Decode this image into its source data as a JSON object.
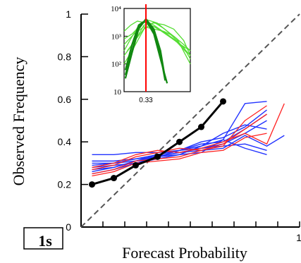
{
  "chart_data": {
    "type": "line",
    "xlabel": "Forecast Probability",
    "ylabel": "Observed Frequency",
    "xlim": [
      0,
      1
    ],
    "ylim": [
      0,
      1
    ],
    "y_ticks": [
      "0",
      "0.2",
      "0.4",
      "0.6",
      "0.8",
      "1"
    ],
    "x_tick_labels": {
      "end": "1"
    },
    "corner_label": "1s",
    "diagonal": {
      "style": "dashed",
      "color": "#555555"
    },
    "bold_series": {
      "color": "#000000",
      "x": [
        0.05,
        0.15,
        0.25,
        0.35,
        0.45,
        0.55,
        0.65
      ],
      "y": [
        0.2,
        0.23,
        0.29,
        0.33,
        0.4,
        0.47,
        0.59
      ]
    },
    "blue_series": [
      {
        "x": [
          0.05,
          0.15,
          0.25,
          0.35,
          0.45,
          0.55,
          0.65,
          0.75,
          0.85
        ],
        "y": [
          0.27,
          0.28,
          0.31,
          0.34,
          0.36,
          0.38,
          0.41,
          0.58,
          0.59
        ]
      },
      {
        "x": [
          0.05,
          0.15,
          0.25,
          0.35,
          0.45,
          0.55,
          0.65,
          0.75,
          0.85
        ],
        "y": [
          0.25,
          0.27,
          0.3,
          0.33,
          0.35,
          0.37,
          0.39,
          0.44,
          0.5
        ]
      },
      {
        "x": [
          0.05,
          0.15,
          0.25,
          0.35,
          0.45,
          0.55,
          0.65,
          0.75,
          0.85
        ],
        "y": [
          0.29,
          0.3,
          0.31,
          0.33,
          0.36,
          0.39,
          0.4,
          0.46,
          0.53
        ]
      },
      {
        "x": [
          0.05,
          0.15,
          0.25,
          0.35,
          0.45,
          0.55,
          0.65,
          0.75,
          0.85
        ],
        "y": [
          0.34,
          0.34,
          0.35,
          0.35,
          0.36,
          0.37,
          0.38,
          0.39,
          0.36
        ]
      },
      {
        "x": [
          0.05,
          0.15,
          0.25,
          0.35,
          0.45,
          0.55,
          0.65,
          0.75,
          0.85
        ],
        "y": [
          0.31,
          0.31,
          0.32,
          0.33,
          0.34,
          0.35,
          0.41,
          0.37,
          0.34
        ]
      },
      {
        "x": [
          0.05,
          0.15,
          0.25,
          0.35,
          0.45,
          0.55,
          0.65,
          0.75,
          0.85
        ],
        "y": [
          0.28,
          0.29,
          0.3,
          0.32,
          0.34,
          0.38,
          0.44,
          0.48,
          0.46
        ]
      },
      {
        "x": [
          0.05,
          0.15,
          0.25,
          0.35,
          0.45,
          0.55,
          0.65,
          0.75,
          0.85,
          0.93
        ],
        "y": [
          0.26,
          0.28,
          0.31,
          0.33,
          0.35,
          0.36,
          0.37,
          0.43,
          0.38,
          0.43
        ]
      },
      {
        "x": [
          0.05,
          0.15,
          0.25,
          0.35,
          0.45,
          0.55,
          0.65,
          0.75,
          0.85
        ],
        "y": [
          0.3,
          0.3,
          0.32,
          0.34,
          0.36,
          0.4,
          0.42,
          0.47,
          0.55
        ]
      }
    ],
    "red_series": [
      {
        "x": [
          0.05,
          0.15,
          0.25,
          0.35,
          0.45,
          0.55,
          0.65,
          0.75,
          0.85
        ],
        "y": [
          0.27,
          0.29,
          0.33,
          0.35,
          0.37,
          0.36,
          0.38,
          0.5,
          0.57
        ]
      },
      {
        "x": [
          0.05,
          0.15,
          0.25,
          0.35,
          0.45,
          0.55,
          0.65,
          0.75,
          0.85
        ],
        "y": [
          0.25,
          0.27,
          0.31,
          0.32,
          0.33,
          0.36,
          0.39,
          0.46,
          0.53
        ]
      },
      {
        "x": [
          0.05,
          0.15,
          0.25,
          0.35,
          0.45,
          0.55,
          0.65,
          0.75,
          0.85
        ],
        "y": [
          0.24,
          0.26,
          0.3,
          0.31,
          0.32,
          0.35,
          0.36,
          0.42,
          0.44
        ]
      },
      {
        "x": [
          0.05,
          0.15,
          0.25,
          0.35,
          0.45,
          0.55,
          0.65,
          0.75,
          0.85,
          0.93
        ],
        "y": [
          0.28,
          0.3,
          0.34,
          0.36,
          0.35,
          0.37,
          0.4,
          0.44,
          0.39,
          0.58
        ]
      }
    ],
    "inset": {
      "type": "line",
      "y_scale": "log",
      "y_ticks": [
        "10⁴",
        "10³",
        "10²",
        "10"
      ],
      "y_tick_values": [
        10000,
        1000,
        100,
        10
      ],
      "x_tick_label": "0.33",
      "marker_x": 0.33,
      "marker_color": "#ff0000",
      "xlim": [
        0,
        1
      ],
      "ylim": [
        10,
        10000
      ],
      "dark_series": [
        {
          "x": [
            0.02,
            0.12,
            0.22,
            0.33,
            0.45,
            0.55,
            0.62
          ],
          "y": [
            40,
            300,
            2000,
            4000,
            1500,
            200,
            25
          ]
        },
        {
          "x": [
            0.02,
            0.12,
            0.22,
            0.33,
            0.45,
            0.55,
            0.65
          ],
          "y": [
            60,
            500,
            2500,
            3800,
            1200,
            150,
            20
          ]
        },
        {
          "x": [
            0.02,
            0.12,
            0.22,
            0.33,
            0.45,
            0.55,
            0.62
          ],
          "y": [
            30,
            250,
            1800,
            4200,
            1800,
            300,
            30
          ]
        }
      ],
      "light_series": [
        {
          "x": [
            0.0,
            0.1,
            0.2,
            0.33,
            0.45,
            0.55,
            0.7,
            0.85,
            1.0
          ],
          "y": [
            1500,
            2500,
            3500,
            3000,
            2200,
            1600,
            900,
            500,
            300
          ]
        },
        {
          "x": [
            0.0,
            0.1,
            0.2,
            0.33,
            0.45,
            0.6,
            0.75,
            0.9,
            1.0
          ],
          "y": [
            300,
            800,
            2000,
            3500,
            2500,
            1400,
            800,
            400,
            150
          ]
        },
        {
          "x": [
            0.0,
            0.12,
            0.25,
            0.33,
            0.5,
            0.65,
            0.8,
            1.0
          ],
          "y": [
            800,
            1200,
            2500,
            4000,
            3000,
            1500,
            700,
            200
          ]
        },
        {
          "x": [
            0.0,
            0.15,
            0.3,
            0.45,
            0.6,
            0.75,
            0.9,
            1.0
          ],
          "y": [
            200,
            600,
            2500,
            3000,
            2600,
            1800,
            700,
            200
          ]
        },
        {
          "x": [
            0.0,
            0.15,
            0.3,
            0.45,
            0.6,
            0.8,
            1.0
          ],
          "y": [
            100,
            400,
            1800,
            3200,
            1900,
            800,
            100
          ]
        },
        {
          "x": [
            0.05,
            0.2,
            0.35,
            0.5,
            0.65,
            0.8,
            0.95
          ],
          "y": [
            300,
            900,
            2700,
            2000,
            1200,
            600,
            250
          ]
        },
        {
          "x": [
            0.0,
            0.15,
            0.3,
            0.45,
            0.6,
            0.75,
            0.9,
            1.0
          ],
          "y": [
            500,
            1200,
            2200,
            1800,
            1500,
            1000,
            500,
            300
          ]
        }
      ]
    }
  }
}
